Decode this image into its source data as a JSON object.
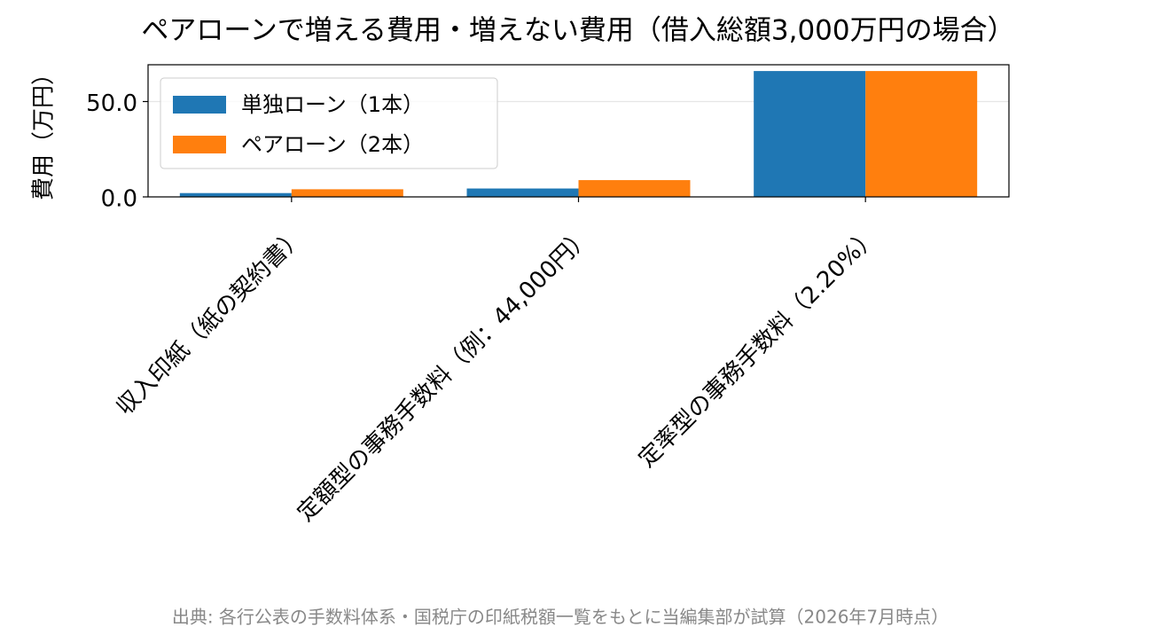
{
  "chart_data": {
    "type": "bar",
    "title": "ペアローンで増える費用・増えない費用（借入総額3,000万円の場合）",
    "ylabel": "費用（万円）",
    "source": "出典: 各行公表の手数料体系・国税庁の印紙税額一覧をもとに当編集部が試算（2026年7月時点）",
    "categories": [
      "収入印紙（紙の契約書）",
      "定額型の事務手数料（例：44,000円）",
      "定率型の事務手数料（2.20%）"
    ],
    "series": [
      {
        "name": "単独ローン（1本）",
        "color": "#1f77b4",
        "values": [
          2,
          4.4,
          66
        ]
      },
      {
        "name": "ペアローン（2本）",
        "color": "#ff7f0e",
        "values": [
          4,
          8.8,
          66
        ]
      }
    ],
    "ylim": [
      0,
      69.3
    ],
    "yticks": [
      {
        "value": 0,
        "label": "0.0"
      },
      {
        "value": 50,
        "label": "50.0"
      }
    ],
    "grid": true,
    "legend": "upper-left"
  }
}
